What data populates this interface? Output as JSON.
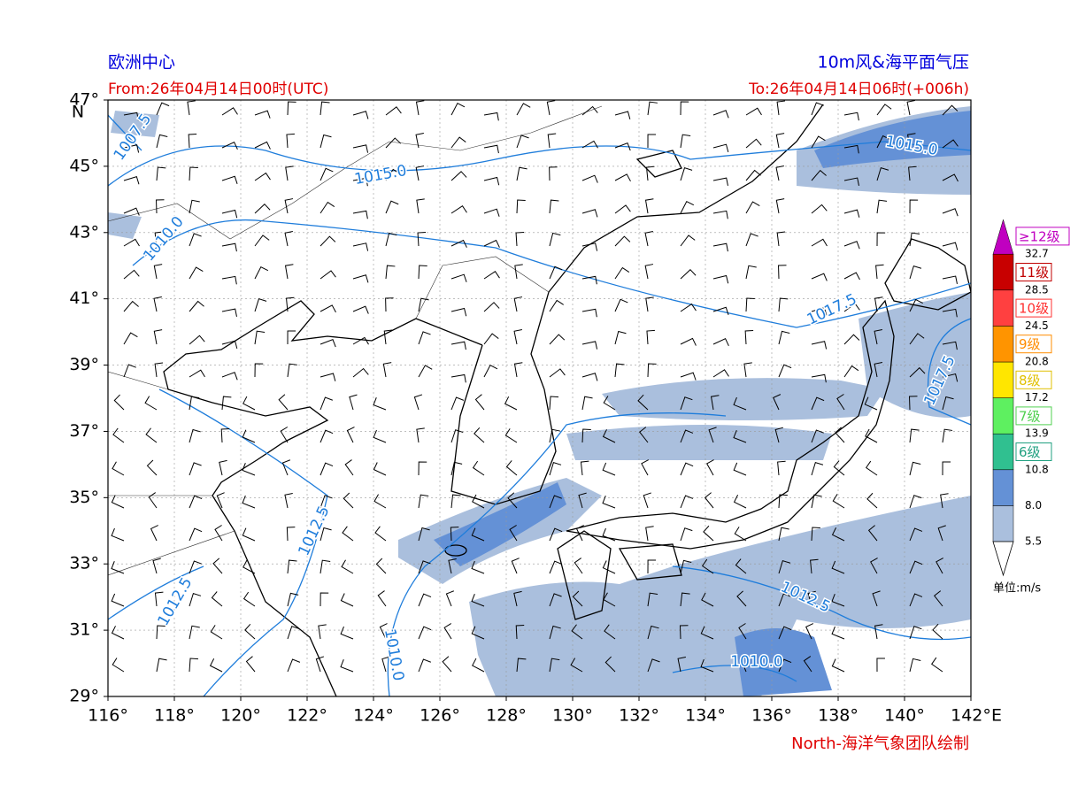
{
  "header": {
    "left_title": "欧洲中心",
    "right_title": "10m风&海平面气压",
    "from": "From:26年04月14日00时(UTC)",
    "to": "To:26年04月14日06时(+006h)"
  },
  "map": {
    "lon_labels": [
      "116°",
      "118°",
      "120°",
      "122°",
      "124°",
      "126°",
      "128°",
      "130°",
      "132°",
      "134°",
      "136°",
      "138°",
      "140°",
      "142°"
    ],
    "lon_unit": "E",
    "lat_labels": [
      "29°",
      "31°",
      "33°",
      "35°",
      "37°",
      "39°",
      "41°",
      "43°",
      "45°",
      "47°"
    ],
    "lat_unit": "N",
    "contour_labels": [
      "1015.0",
      "1015.0",
      "1007.5",
      "1010.0",
      "1017.5",
      "1017.5",
      "1012.5",
      "1012.5",
      "1012.5",
      "1010.0",
      "1010.0"
    ]
  },
  "colorbar": {
    "grades": [
      "6级",
      "7级",
      "8级",
      "9级",
      "10级",
      "11级",
      "≥12级"
    ],
    "values": [
      "5.5",
      "8.0",
      "10.8",
      "13.9",
      "17.2",
      "20.8",
      "24.5",
      "28.5",
      "32.7"
    ],
    "unit": "单位:m/s"
  },
  "credit": "North-海洋气象团队绘制"
}
